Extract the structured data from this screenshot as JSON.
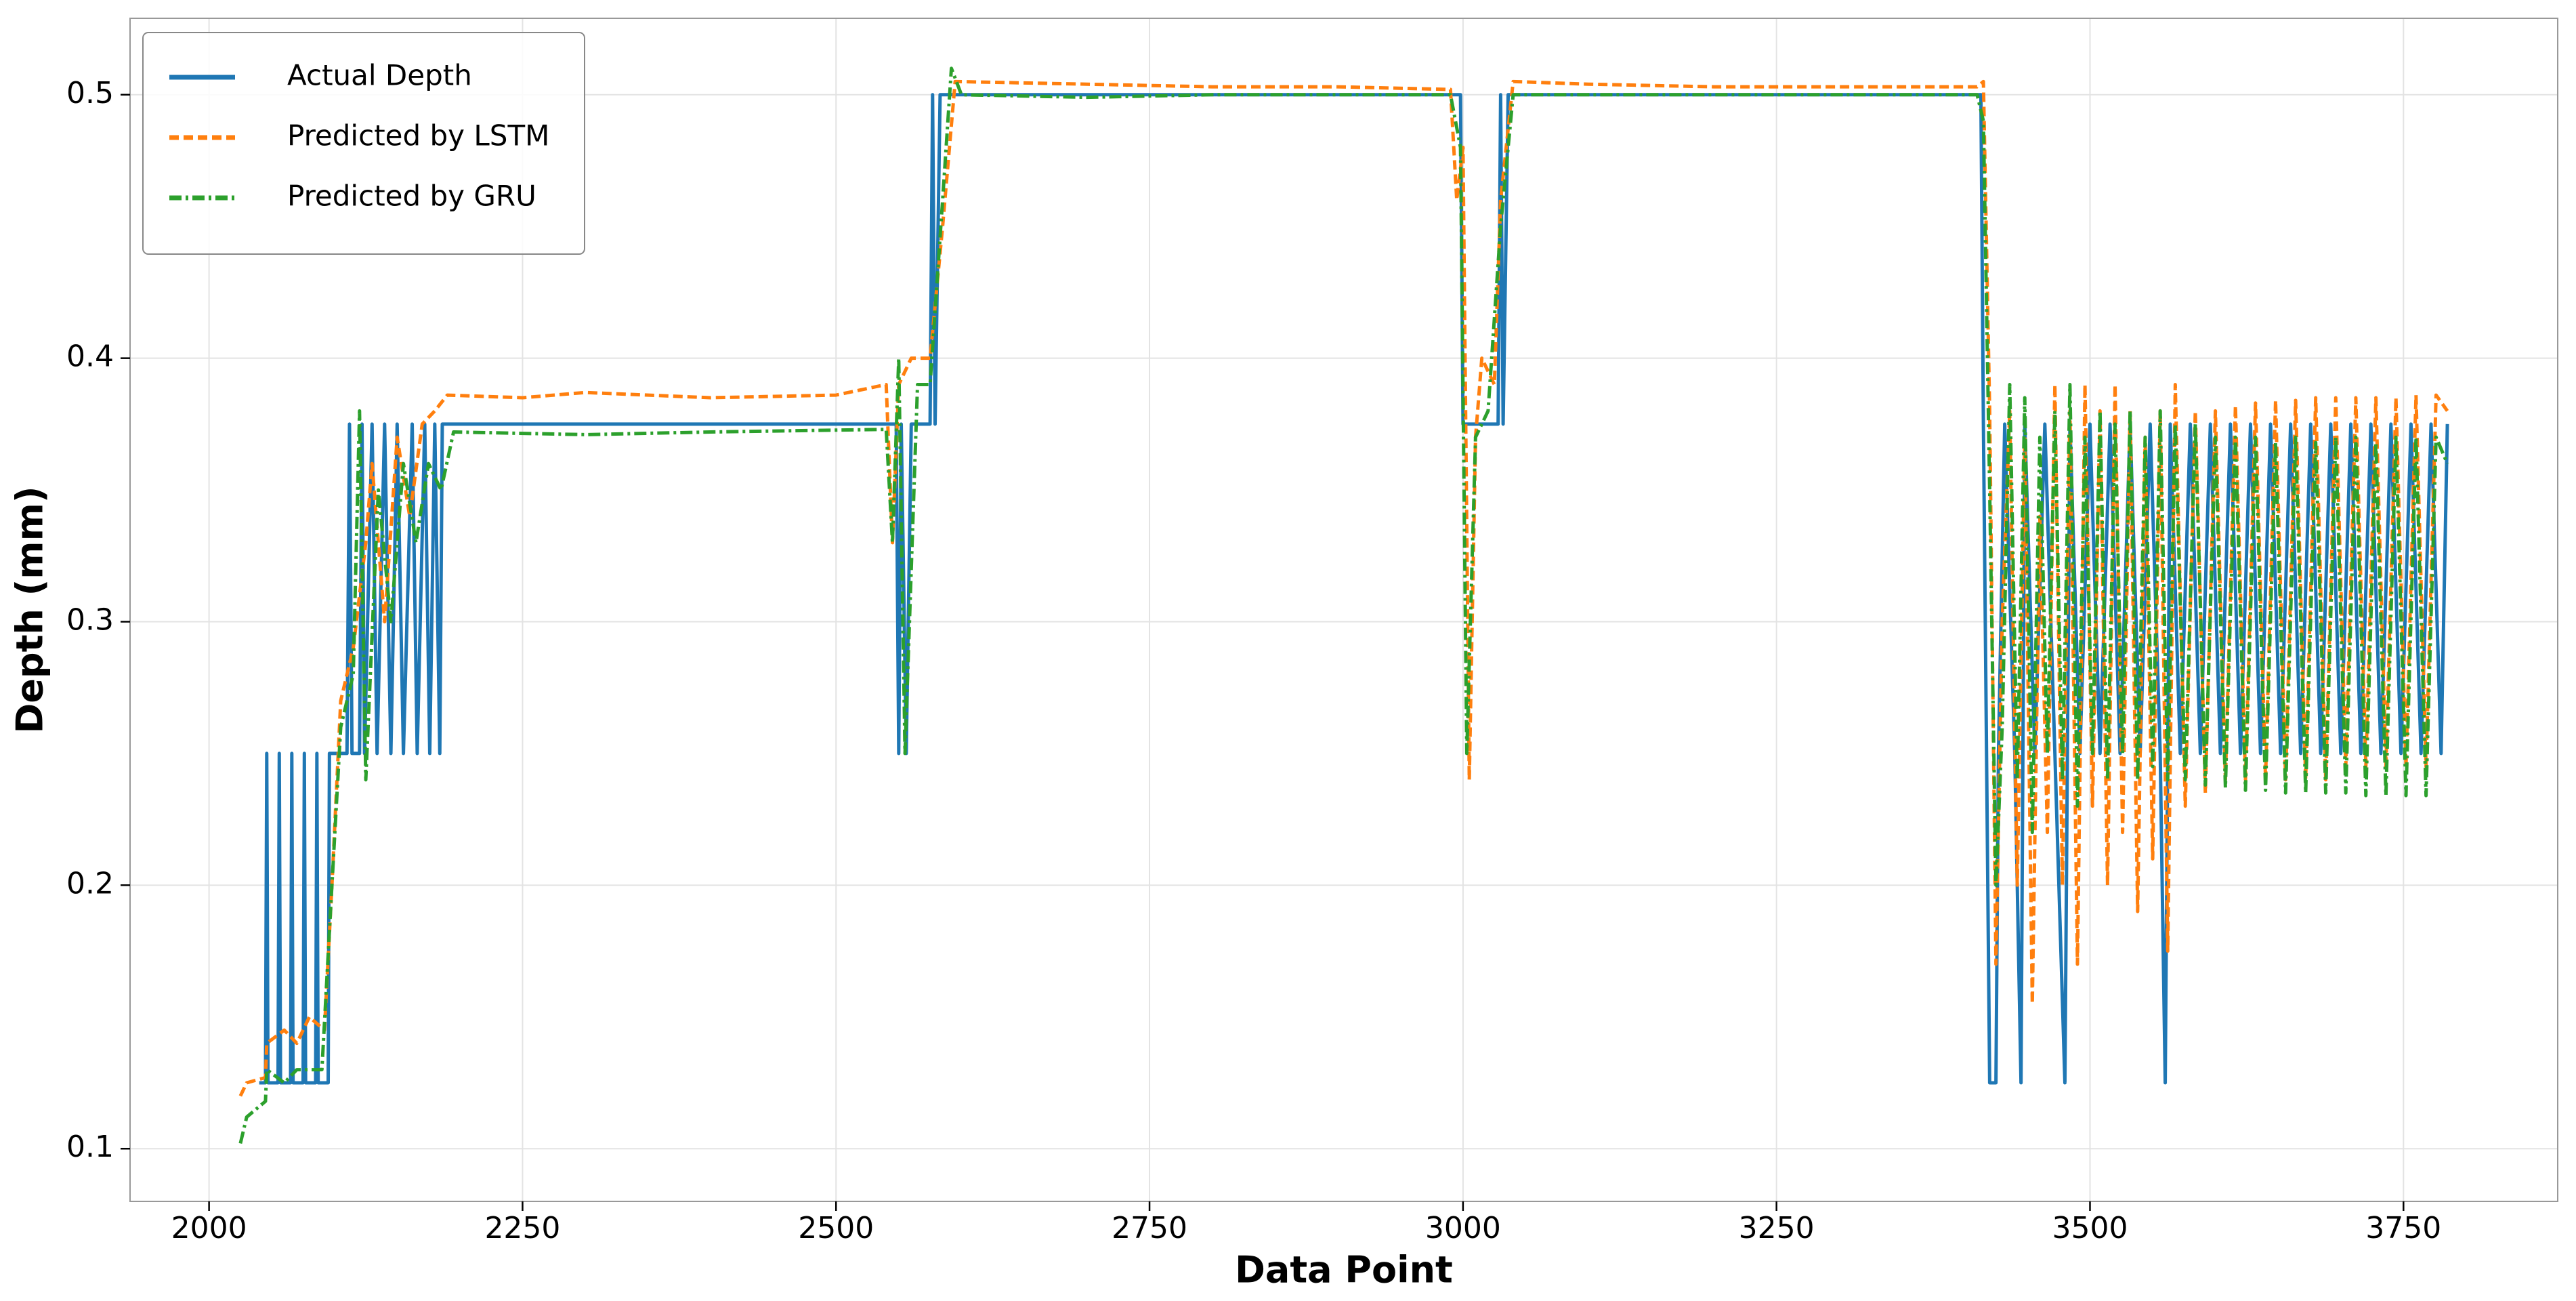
{
  "chart_data": {
    "type": "line",
    "x_label": "Data Point",
    "y_label": "Depth (mm)",
    "xlim": [
      1937,
      3873
    ],
    "ylim": [
      0.08,
      0.529
    ],
    "xticks": [
      2000,
      2250,
      2500,
      2750,
      3000,
      3250,
      3500,
      3750
    ],
    "yticks": [
      0.1,
      0.2,
      0.3,
      0.4,
      0.5
    ],
    "grid": true,
    "legend": "upper left",
    "series": [
      {
        "name": "Actual Depth",
        "color": "#1f77b4",
        "linestyle": "solid",
        "x": [
          2040,
          2045,
          2046,
          2047,
          2055,
          2056,
          2057,
          2065,
          2066,
          2067,
          2075,
          2076,
          2077,
          2085,
          2086,
          2087,
          2095,
          2096,
          2110,
          2112,
          2114,
          2120,
          2122,
          2124,
          2130,
          2134,
          2140,
          2145,
          2150,
          2155,
          2162,
          2166,
          2172,
          2176,
          2180,
          2184,
          2186,
          2548,
          2550,
          2552,
          2556,
          2560,
          2575,
          2577,
          2579,
          2583,
          2998,
          3000,
          3028,
          3030,
          3032,
          3036,
          3413,
          3415,
          3420,
          3425,
          3427,
          3432,
          3440,
          3445,
          3448,
          3456,
          3464,
          3472,
          3480,
          3484,
          3492,
          3500,
          3508,
          3516,
          3524,
          3532,
          3540,
          3548,
          3556,
          3560,
          3564,
          3572,
          3580,
          3588,
          3596,
          3604,
          3612,
          3620,
          3628,
          3636,
          3644,
          3652,
          3660,
          3668,
          3676,
          3684,
          3692,
          3700,
          3708,
          3716,
          3724,
          3732,
          3740,
          3748,
          3756,
          3764,
          3772,
          3780,
          3785
        ],
        "values": [
          0.125,
          0.125,
          0.25,
          0.125,
          0.125,
          0.25,
          0.125,
          0.125,
          0.25,
          0.125,
          0.125,
          0.25,
          0.125,
          0.125,
          0.25,
          0.125,
          0.125,
          0.25,
          0.25,
          0.375,
          0.25,
          0.25,
          0.375,
          0.25,
          0.375,
          0.25,
          0.375,
          0.25,
          0.375,
          0.25,
          0.375,
          0.25,
          0.375,
          0.25,
          0.375,
          0.25,
          0.375,
          0.375,
          0.25,
          0.375,
          0.25,
          0.375,
          0.375,
          0.5,
          0.375,
          0.5,
          0.5,
          0.375,
          0.375,
          0.5,
          0.375,
          0.5,
          0.5,
          0.375,
          0.125,
          0.125,
          0.25,
          0.375,
          0.25,
          0.125,
          0.375,
          0.25,
          0.375,
          0.25,
          0.125,
          0.375,
          0.25,
          0.375,
          0.25,
          0.375,
          0.25,
          0.375,
          0.25,
          0.375,
          0.25,
          0.125,
          0.375,
          0.25,
          0.375,
          0.25,
          0.375,
          0.25,
          0.375,
          0.25,
          0.375,
          0.25,
          0.375,
          0.25,
          0.375,
          0.25,
          0.375,
          0.25,
          0.375,
          0.25,
          0.375,
          0.25,
          0.375,
          0.25,
          0.375,
          0.25,
          0.375,
          0.25,
          0.375,
          0.25,
          0.375
        ]
      },
      {
        "name": "Predicted by LSTM",
        "color": "#ff7f0e",
        "linestyle": "dashed",
        "x": [
          2025,
          2030,
          2045,
          2046,
          2060,
          2070,
          2080,
          2092,
          2098,
          2105,
          2115,
          2125,
          2130,
          2140,
          2150,
          2160,
          2170,
          2180,
          2190,
          2250,
          2300,
          2400,
          2500,
          2540,
          2545,
          2550,
          2560,
          2575,
          2585,
          2595,
          2700,
          2800,
          2900,
          2990,
          2995,
          3000,
          3005,
          3010,
          3015,
          3025,
          3030,
          3040,
          3100,
          3200,
          3300,
          3410,
          3415,
          3420,
          3425,
          3430,
          3436,
          3442,
          3448,
          3454,
          3460,
          3466,
          3472,
          3478,
          3484,
          3490,
          3496,
          3502,
          3508,
          3514,
          3520,
          3526,
          3532,
          3538,
          3544,
          3550,
          3556,
          3562,
          3568,
          3576,
          3584,
          3592,
          3600,
          3608,
          3616,
          3624,
          3632,
          3640,
          3648,
          3656,
          3664,
          3672,
          3680,
          3688,
          3696,
          3704,
          3712,
          3720,
          3728,
          3736,
          3744,
          3752,
          3760,
          3768,
          3776,
          3785
        ],
        "values": [
          0.12,
          0.125,
          0.127,
          0.14,
          0.145,
          0.14,
          0.15,
          0.145,
          0.2,
          0.27,
          0.29,
          0.33,
          0.36,
          0.3,
          0.37,
          0.34,
          0.375,
          0.38,
          0.386,
          0.385,
          0.387,
          0.385,
          0.386,
          0.39,
          0.33,
          0.39,
          0.4,
          0.4,
          0.45,
          0.505,
          0.504,
          0.503,
          0.503,
          0.502,
          0.46,
          0.48,
          0.24,
          0.37,
          0.4,
          0.39,
          0.46,
          0.505,
          0.504,
          0.503,
          0.503,
          0.503,
          0.505,
          0.38,
          0.17,
          0.3,
          0.38,
          0.2,
          0.37,
          0.155,
          0.34,
          0.22,
          0.39,
          0.2,
          0.38,
          0.17,
          0.39,
          0.23,
          0.38,
          0.2,
          0.39,
          0.22,
          0.38,
          0.19,
          0.37,
          0.21,
          0.38,
          0.175,
          0.39,
          0.23,
          0.38,
          0.235,
          0.38,
          0.24,
          0.382,
          0.24,
          0.383,
          0.24,
          0.384,
          0.24,
          0.384,
          0.24,
          0.385,
          0.24,
          0.385,
          0.245,
          0.385,
          0.245,
          0.385,
          0.245,
          0.385,
          0.245,
          0.386,
          0.245,
          0.386,
          0.38
        ]
      },
      {
        "name": "Predicted by GRU",
        "color": "#2ca02c",
        "linestyle": "dashdot",
        "x": [
          2025,
          2030,
          2045,
          2046,
          2060,
          2070,
          2090,
          2098,
          2105,
          2115,
          2120,
          2125,
          2135,
          2145,
          2155,
          2165,
          2175,
          2185,
          2195,
          2300,
          2400,
          2540,
          2545,
          2550,
          2555,
          2565,
          2575,
          2585,
          2592,
          2600,
          2700,
          2800,
          2990,
          2998,
          3003,
          3010,
          3020,
          3030,
          3040,
          3200,
          3410,
          3415,
          3420,
          3425,
          3430,
          3436,
          3442,
          3448,
          3454,
          3460,
          3466,
          3472,
          3478,
          3484,
          3490,
          3496,
          3502,
          3508,
          3514,
          3520,
          3526,
          3532,
          3538,
          3544,
          3550,
          3556,
          3562,
          3568,
          3576,
          3584,
          3592,
          3600,
          3608,
          3616,
          3624,
          3632,
          3640,
          3648,
          3656,
          3664,
          3672,
          3680,
          3688,
          3696,
          3704,
          3712,
          3720,
          3728,
          3736,
          3744,
          3752,
          3760,
          3768,
          3776,
          3785
        ],
        "values": [
          0.102,
          0.112,
          0.118,
          0.13,
          0.125,
          0.13,
          0.13,
          0.2,
          0.26,
          0.28,
          0.38,
          0.24,
          0.35,
          0.3,
          0.36,
          0.33,
          0.36,
          0.35,
          0.372,
          0.371,
          0.372,
          0.373,
          0.33,
          0.4,
          0.25,
          0.39,
          0.39,
          0.46,
          0.51,
          0.5,
          0.499,
          0.5,
          0.5,
          0.48,
          0.25,
          0.37,
          0.38,
          0.45,
          0.5,
          0.5,
          0.5,
          0.49,
          0.35,
          0.2,
          0.26,
          0.39,
          0.24,
          0.385,
          0.22,
          0.37,
          0.25,
          0.38,
          0.24,
          0.39,
          0.23,
          0.37,
          0.25,
          0.38,
          0.24,
          0.375,
          0.25,
          0.38,
          0.24,
          0.37,
          0.245,
          0.38,
          0.24,
          0.375,
          0.24,
          0.375,
          0.238,
          0.37,
          0.237,
          0.37,
          0.236,
          0.37,
          0.236,
          0.368,
          0.235,
          0.37,
          0.235,
          0.368,
          0.235,
          0.37,
          0.235,
          0.37,
          0.234,
          0.368,
          0.234,
          0.37,
          0.234,
          0.37,
          0.234,
          0.37,
          0.36
        ]
      }
    ]
  }
}
